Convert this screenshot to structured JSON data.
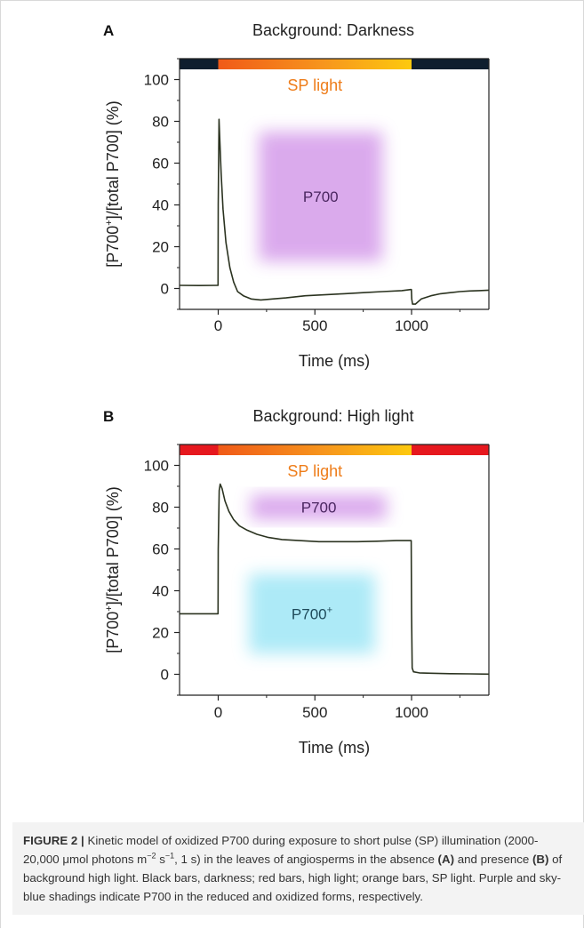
{
  "chart_data": [
    {
      "type": "line",
      "panel_label": "A",
      "title": "Background: Darkness",
      "xlabel": "Time (ms)",
      "ylabel_parts": [
        "[P700",
        "+",
        "]/[total P700] (%)"
      ],
      "xlim": [
        -200,
        1400
      ],
      "ylim": [
        -10,
        110
      ],
      "xticks": [
        0,
        500,
        1000
      ],
      "yticks": [
        0,
        20,
        40,
        60,
        80,
        100
      ],
      "light_bar": {
        "segments": [
          {
            "start": -200,
            "end": 0,
            "kind": "background",
            "color": "#0f1e2e"
          },
          {
            "start": 0,
            "end": 1000,
            "kind": "sp",
            "color": "#f26c1a"
          },
          {
            "start": 1000,
            "end": 1400,
            "kind": "background",
            "color": "#0f1e2e"
          }
        ],
        "label": "SP light",
        "label_color": "#ee7d1a"
      },
      "regions": [
        {
          "label": "P700",
          "label_sup": "",
          "x": [
            210,
            850
          ],
          "y": [
            13,
            75
          ],
          "color": "#d9a6ec",
          "text_color": "#4a2660"
        }
      ],
      "series": [
        {
          "color": "#2b3320",
          "x": [
            -200,
            -100,
            -5,
            -1,
            0,
            4,
            8,
            15,
            25,
            40,
            60,
            80,
            100,
            130,
            170,
            220,
            280,
            350,
            450,
            550,
            650,
            750,
            850,
            950,
            995,
            999,
            1001,
            1005,
            1020,
            1050,
            1100,
            1150,
            1200,
            1250,
            1300,
            1350,
            1400
          ],
          "y": [
            1.5,
            1.4,
            1.5,
            1.5,
            40,
            81,
            72,
            55,
            38,
            22,
            10,
            3,
            -1.5,
            -3.5,
            -5,
            -5.5,
            -5,
            -4.5,
            -3.5,
            -3,
            -2.5,
            -2,
            -1.5,
            -1,
            -0.5,
            -0.5,
            -5,
            -7.5,
            -7.5,
            -5,
            -3.5,
            -2.5,
            -2,
            -1.5,
            -1.2,
            -1,
            -0.8
          ]
        }
      ]
    },
    {
      "type": "line",
      "panel_label": "B",
      "title": "Background: High light",
      "xlabel": "Time (ms)",
      "ylabel_parts": [
        "[P700",
        "+",
        "]/[total P700] (%)"
      ],
      "xlim": [
        -200,
        1400
      ],
      "ylim": [
        -10,
        110
      ],
      "xticks": [
        0,
        500,
        1000
      ],
      "yticks": [
        0,
        20,
        40,
        60,
        80,
        100
      ],
      "light_bar": {
        "segments": [
          {
            "start": -200,
            "end": 0,
            "kind": "background",
            "color": "#e6181e"
          },
          {
            "start": 0,
            "end": 1000,
            "kind": "sp",
            "color": "#f26c1a"
          },
          {
            "start": 1000,
            "end": 1400,
            "kind": "background",
            "color": "#e6181e"
          }
        ],
        "label": "SP light",
        "label_color": "#ee7d1a"
      },
      "regions": [
        {
          "label": "P700",
          "label_sup": "",
          "x": [
            170,
            870
          ],
          "y": [
            74,
            86
          ],
          "color": "#d9a6ec",
          "text_color": "#4a2660"
        },
        {
          "label": "P700",
          "label_sup": "+",
          "x": [
            160,
            810
          ],
          "y": [
            10,
            48
          ],
          "color": "#a9e9f7",
          "text_color": "#1e4a5a"
        }
      ],
      "series": [
        {
          "color": "#2b3320",
          "x": [
            -200,
            -100,
            -5,
            -1,
            0,
            5,
            10,
            20,
            35,
            55,
            80,
            110,
            150,
            200,
            260,
            330,
            420,
            520,
            620,
            720,
            820,
            920,
            990,
            998,
            1000,
            1003,
            1010,
            1040,
            1100,
            1200,
            1300,
            1400
          ],
          "y": [
            29,
            29,
            29,
            29,
            60,
            88,
            91,
            89,
            83,
            78,
            74,
            71,
            69,
            67,
            65.5,
            64.5,
            64,
            63.5,
            63.5,
            63.5,
            63.7,
            64,
            64,
            64,
            30,
            3,
            1.2,
            0.7,
            0.5,
            0.3,
            0.2,
            0.1
          ]
        }
      ]
    }
  ],
  "caption": {
    "label": "FIGURE 2 |",
    "segments": [
      {
        "text": " Kinetic model of oxidized P700 during exposure to short pulse (SP) illumination (2000-20,000 ",
        "bold": false
      },
      {
        "text": "μ",
        "bold": false
      },
      {
        "text": "mol photons m",
        "bold": false
      },
      {
        "text": "−2",
        "sup": true
      },
      {
        "text": " s",
        "bold": false
      },
      {
        "text": "−1",
        "sup": true
      },
      {
        "text": ", 1 s) in the leaves of angiosperms in the absence ",
        "bold": false
      },
      {
        "text": "(A)",
        "bold": true
      },
      {
        "text": " and presence ",
        "bold": false
      },
      {
        "text": "(B)",
        "bold": true
      },
      {
        "text": " of background high light. Black bars, darkness; red bars, high light; orange bars, SP light. Purple and sky-blue shadings indicate P700 in the reduced and oxidized forms, respectively.",
        "bold": false
      }
    ]
  }
}
